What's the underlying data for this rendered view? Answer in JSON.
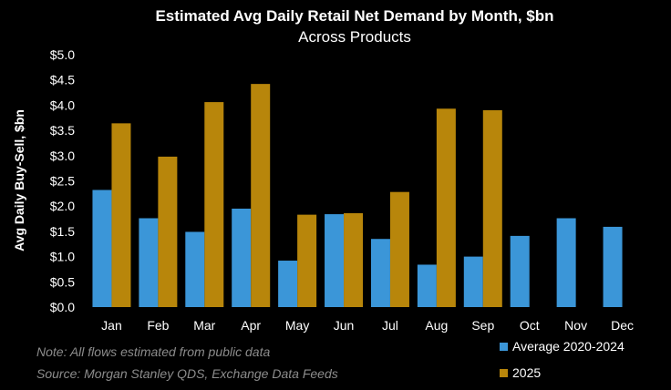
{
  "chart_data": {
    "type": "bar",
    "title": "Estimated Avg Daily Retail Net Demand by Month, $bn",
    "subtitle": "Across Products",
    "ylabel": "Avg Daily Buy-Sell, $bn",
    "xlabel": "",
    "ylim": [
      0,
      5
    ],
    "yticks": [
      0,
      0.5,
      1,
      1.5,
      2,
      2.5,
      3,
      3.5,
      4,
      4.5,
      5
    ],
    "ytick_labels": [
      "$0.0",
      "$0.5",
      "$1.0",
      "$1.5",
      "$2.0",
      "$2.5",
      "$3.0",
      "$3.5",
      "$4.0",
      "$4.5",
      "$5.0"
    ],
    "categories": [
      "Jan",
      "Feb",
      "Mar",
      "Apr",
      "May",
      "Jun",
      "Jul",
      "Aug",
      "Sep",
      "Oct",
      "Nov",
      "Dec"
    ],
    "series": [
      {
        "name": "Average 2020-2024",
        "color": "#3b96d8",
        "values": [
          2.32,
          1.76,
          1.49,
          1.95,
          0.92,
          1.84,
          1.35,
          0.84,
          1.0,
          1.41,
          1.76,
          1.59
        ]
      },
      {
        "name": "2025",
        "color": "#b8860b",
        "values": [
          3.64,
          2.98,
          4.06,
          4.42,
          1.83,
          1.86,
          2.28,
          3.93,
          3.9,
          null,
          null,
          null
        ]
      }
    ],
    "grid": false,
    "legend": "bottom-right"
  },
  "notes": {
    "line1": "Note: All flows estimated from public data",
    "line2": "Source: Morgan Stanley QDS, Exchange Data Feeds"
  }
}
